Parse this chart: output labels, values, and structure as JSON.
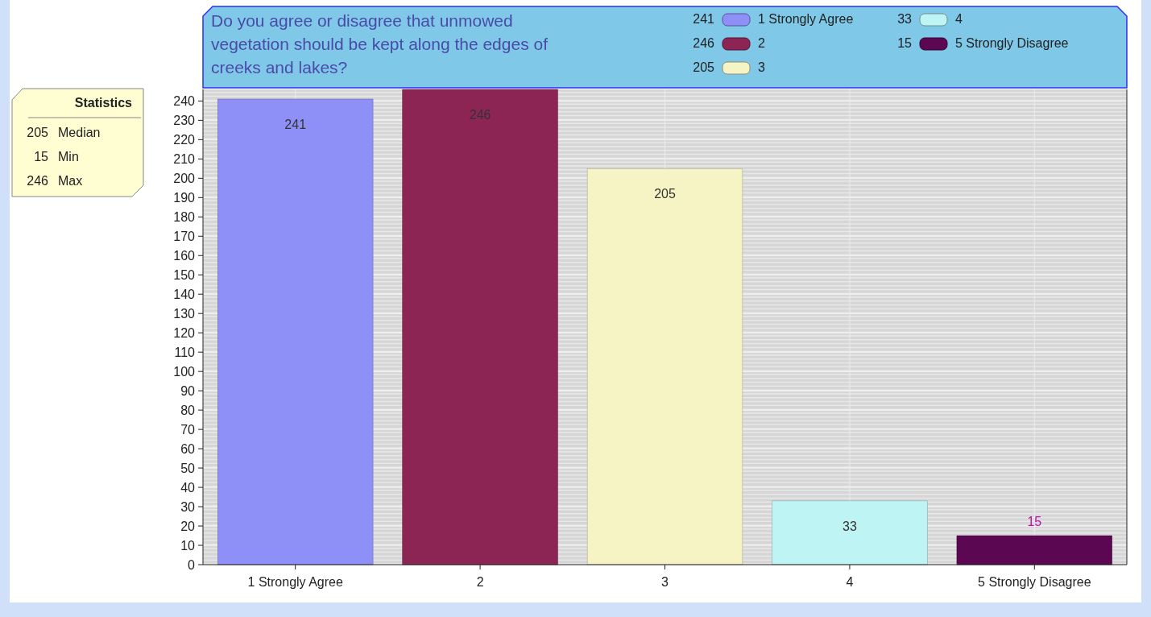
{
  "chart_data": {
    "type": "bar",
    "title": "Do you agree or disagree that unmowed vegetation should be kept along the edges of creeks and lakes?",
    "categories": [
      "1 Strongly Agree",
      "2",
      "3",
      "4",
      "5 Strongly Disagree"
    ],
    "series": [
      {
        "name": "1 Strongly Agree",
        "color": "#8f8ff8",
        "values": [
          241,
          null,
          null,
          null,
          null
        ]
      },
      {
        "name": "2",
        "color": "#8c2454",
        "values": [
          null,
          246,
          null,
          null,
          null
        ]
      },
      {
        "name": "3",
        "color": "#f6f4c4",
        "values": [
          null,
          null,
          205,
          null,
          null
        ]
      },
      {
        "name": "4",
        "color": "#bff4f4",
        "values": [
          null,
          null,
          null,
          33,
          null
        ]
      },
      {
        "name": "5 Strongly Disagree",
        "color": "#5c0752",
        "values": [
          null,
          null,
          null,
          null,
          15
        ]
      }
    ],
    "ylim": [
      0,
      246
    ],
    "yticks": [
      0,
      10,
      20,
      30,
      40,
      50,
      60,
      70,
      80,
      90,
      100,
      110,
      120,
      130,
      140,
      150,
      160,
      170,
      180,
      190,
      200,
      210,
      220,
      230,
      240
    ],
    "grid": true,
    "legend": "top right",
    "data_labels": true,
    "annotations": [
      "Statistics",
      "205  Median",
      "15  Min",
      "246  Max",
      "241",
      "246",
      "205",
      "33",
      "15"
    ]
  }
}
